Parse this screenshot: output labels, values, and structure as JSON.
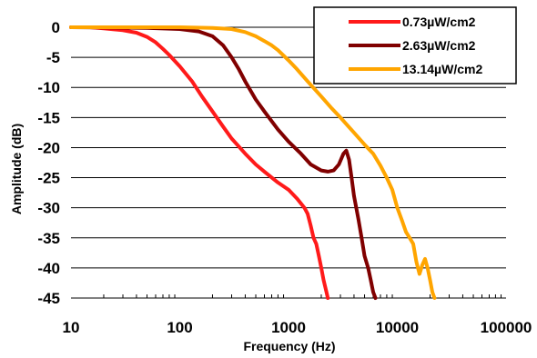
{
  "chart_data": {
    "type": "line",
    "title": "",
    "xlabel": "Frequency (Hz)",
    "ylabel": "Amplitude (dB)",
    "xscale": "log",
    "xlim": [
      10,
      100000
    ],
    "ylim": [
      -45,
      0
    ],
    "x_ticks": [
      10,
      100,
      1000,
      10000,
      100000
    ],
    "x_tick_labels": [
      "10",
      "100",
      "1000",
      "10000",
      "100000"
    ],
    "y_ticks": [
      0,
      -5,
      -10,
      -15,
      -20,
      -25,
      -30,
      -35,
      -40,
      -45
    ],
    "y_tick_labels": [
      "0",
      "-5",
      "-10",
      "-15",
      "-20",
      "-25",
      "-30",
      "-35",
      "-40",
      "-45"
    ],
    "grid": "horizontal",
    "legend_position": "top-right",
    "series": [
      {
        "name": "0.73µW/cm2",
        "color": "#ff1a1a",
        "points": [
          [
            10,
            0
          ],
          [
            15,
            0
          ],
          [
            20,
            -0.2
          ],
          [
            30,
            -0.5
          ],
          [
            40,
            -0.9
          ],
          [
            50,
            -1.6
          ],
          [
            60,
            -2.5
          ],
          [
            70,
            -3.6
          ],
          [
            80,
            -4.6
          ],
          [
            100,
            -6.5
          ],
          [
            130,
            -9
          ],
          [
            160,
            -11.5
          ],
          [
            200,
            -14
          ],
          [
            250,
            -16.5
          ],
          [
            300,
            -18.5
          ],
          [
            400,
            -21
          ],
          [
            500,
            -22.8
          ],
          [
            600,
            -24
          ],
          [
            800,
            -25.8
          ],
          [
            1000,
            -27
          ],
          [
            1200,
            -28.5
          ],
          [
            1400,
            -30
          ],
          [
            1500,
            -31
          ],
          [
            1600,
            -33
          ],
          [
            1700,
            -35
          ],
          [
            1800,
            -36
          ],
          [
            1900,
            -38
          ],
          [
            2000,
            -40
          ],
          [
            2100,
            -42
          ],
          [
            2200,
            -43.5
          ],
          [
            2300,
            -45
          ]
        ]
      },
      {
        "name": "2.63µW/cm2",
        "color": "#800000",
        "points": [
          [
            10,
            0
          ],
          [
            50,
            -0.1
          ],
          [
            100,
            -0.3
          ],
          [
            150,
            -0.7
          ],
          [
            200,
            -1.5
          ],
          [
            250,
            -3
          ],
          [
            300,
            -5
          ],
          [
            350,
            -7
          ],
          [
            400,
            -9
          ],
          [
            500,
            -12
          ],
          [
            600,
            -14
          ],
          [
            800,
            -17
          ],
          [
            1000,
            -19
          ],
          [
            1300,
            -21
          ],
          [
            1600,
            -22.8
          ],
          [
            2000,
            -23.8
          ],
          [
            2300,
            -24
          ],
          [
            2600,
            -23.8
          ],
          [
            2900,
            -22.8
          ],
          [
            3200,
            -21
          ],
          [
            3400,
            -20.5
          ],
          [
            3600,
            -22
          ],
          [
            3800,
            -25
          ],
          [
            4000,
            -28
          ],
          [
            4400,
            -32
          ],
          [
            4700,
            -35
          ],
          [
            5000,
            -38
          ],
          [
            5400,
            -40
          ],
          [
            5700,
            -42
          ],
          [
            6000,
            -44
          ],
          [
            6300,
            -45
          ]
        ]
      },
      {
        "name": "13.14µW/cm2",
        "color": "#ffa500",
        "points": [
          [
            10,
            0
          ],
          [
            100,
            0
          ],
          [
            200,
            -0.1
          ],
          [
            300,
            -0.3
          ],
          [
            400,
            -0.8
          ],
          [
            500,
            -1.5
          ],
          [
            600,
            -2.3
          ],
          [
            700,
            -3
          ],
          [
            800,
            -3.8
          ],
          [
            1000,
            -5.5
          ],
          [
            1200,
            -7
          ],
          [
            1500,
            -9
          ],
          [
            2000,
            -11.5
          ],
          [
            2500,
            -13.5
          ],
          [
            3000,
            -15
          ],
          [
            4000,
            -17.5
          ],
          [
            5000,
            -19.5
          ],
          [
            6000,
            -21
          ],
          [
            7000,
            -23
          ],
          [
            8000,
            -25
          ],
          [
            9000,
            -27
          ],
          [
            10000,
            -30
          ],
          [
            11000,
            -32
          ],
          [
            12000,
            -34
          ],
          [
            13000,
            -35
          ],
          [
            14000,
            -36
          ],
          [
            15000,
            -39
          ],
          [
            16000,
            -41
          ],
          [
            17000,
            -39.5
          ],
          [
            18000,
            -38.5
          ],
          [
            19000,
            -40
          ],
          [
            20000,
            -42
          ],
          [
            21000,
            -44
          ],
          [
            22000,
            -45
          ]
        ]
      }
    ]
  }
}
